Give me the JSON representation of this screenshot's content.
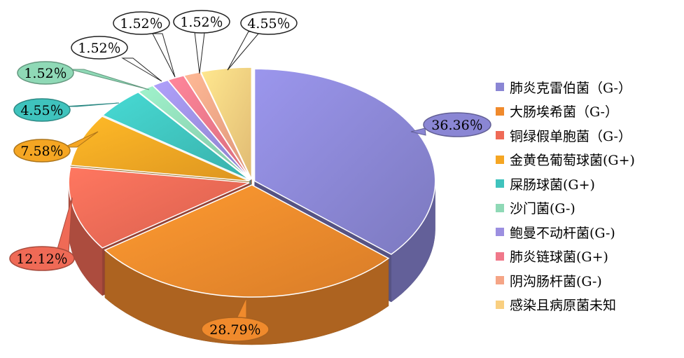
{
  "chart_data": {
    "type": "pie",
    "title": "",
    "categories": [
      "肺炎克雷伯菌（G-）",
      "大肠埃希菌（G-）",
      "铜绿假单胞菌（G-）",
      "金黄色葡萄球菌(G+)",
      "屎肠球菌(G+)",
      "沙门菌(G-)",
      "鲍曼不动杆菌(G-)",
      "肺炎链球菌(G+)",
      "阴沟肠杆菌(G-)",
      "感染且病原菌未知"
    ],
    "values": [
      36.36,
      28.79,
      12.12,
      7.58,
      4.55,
      1.52,
      1.52,
      1.52,
      1.52,
      4.55
    ],
    "data_labels": [
      "36.36％",
      "28.79％",
      "12.12％",
      "7.58％",
      "4.55％",
      "1.52％",
      "1.52％",
      "1.52％",
      "1.52％",
      "4.55％"
    ],
    "colors": [
      "#8a86d4",
      "#f08a2c",
      "#ef6a56",
      "#f5a623",
      "#3fc3bd",
      "#8fd9b6",
      "#9c8fe0",
      "#f0788a",
      "#f5a586",
      "#f9cf80"
    ],
    "legend_position": "right",
    "style": "3d-exploded"
  }
}
